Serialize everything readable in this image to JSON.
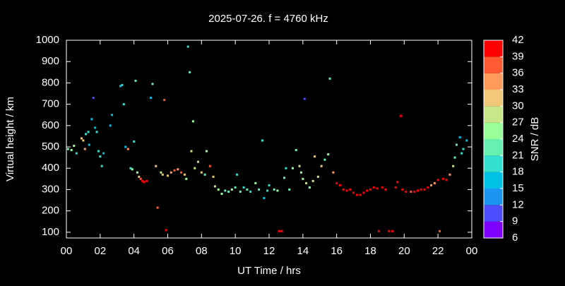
{
  "chart_data": {
    "type": "scatter",
    "title": "2025-07-26. f = 4760 kHz",
    "x_label": "UT Time / hrs",
    "y_label": "Virtual height / km",
    "xlim": [
      0,
      24
    ],
    "xticks": [
      {
        "value": 0,
        "label": "00"
      },
      {
        "value": 2,
        "label": "02"
      },
      {
        "value": 4,
        "label": "04"
      },
      {
        "value": 6,
        "label": "06"
      },
      {
        "value": 8,
        "label": "08"
      },
      10,
      12,
      14,
      16,
      18,
      20,
      22,
      {
        "value": 24,
        "label": "00"
      }
    ],
    "ylim": [
      73,
      1000
    ],
    "yticks": [
      100,
      200,
      300,
      400,
      500,
      600,
      700,
      800,
      900,
      1000
    ],
    "colorbar": {
      "label": "SNR / dB",
      "lim": [
        6,
        42
      ],
      "ticks": [
        6,
        9,
        12,
        15,
        18,
        21,
        24,
        27,
        30,
        33,
        36,
        39,
        42
      ],
      "colors": [
        "#8000ff",
        "#4d4dff",
        "#1a96f0",
        "#00c0e8",
        "#33e0d0",
        "#66f0b0",
        "#99ff99",
        "#c8e68a",
        "#f0c878",
        "#ff9a5c",
        "#ff5a33",
        "#ff0000"
      ]
    },
    "x": [
      0.1,
      0.3,
      0.45,
      0.6,
      0.9,
      1.0,
      1.1,
      1.15,
      1.3,
      1.35,
      1.5,
      1.6,
      1.7,
      1.8,
      1.9,
      2.0,
      2.1,
      2.2,
      2.6,
      2.7,
      3.2,
      3.3,
      3.4,
      3.5,
      3.65,
      3.8,
      3.9,
      4.0,
      4.1,
      4.2,
      4.3,
      4.4,
      4.5,
      4.6,
      4.75,
      5.0,
      5.1,
      5.3,
      5.4,
      5.6,
      5.7,
      5.8,
      5.9,
      6.0,
      6.2,
      6.4,
      6.6,
      6.8,
      7.0,
      7.1,
      7.2,
      7.3,
      7.4,
      7.5,
      7.6,
      7.8,
      8.0,
      8.2,
      8.3,
      8.5,
      8.7,
      8.8,
      9.0,
      9.2,
      9.4,
      9.6,
      9.8,
      10.0,
      10.1,
      10.3,
      10.5,
      10.7,
      10.9,
      11.2,
      11.4,
      11.6,
      11.7,
      11.9,
      12.0,
      12.3,
      12.5,
      12.6,
      12.75,
      12.9,
      13.0,
      13.2,
      13.4,
      13.6,
      13.8,
      13.9,
      14.0,
      14.1,
      14.2,
      14.4,
      14.6,
      14.7,
      14.9,
      15.1,
      15.3,
      15.5,
      15.6,
      15.8,
      16.0,
      16.2,
      16.4,
      16.6,
      16.8,
      17.0,
      17.2,
      17.4,
      17.6,
      17.8,
      18.0,
      18.2,
      18.4,
      18.5,
      18.7,
      18.9,
      19.1,
      19.3,
      19.5,
      19.6,
      19.8,
      19.9,
      20.1,
      20.4,
      20.6,
      20.8,
      21.0,
      21.2,
      21.4,
      21.6,
      21.8,
      22.0,
      22.1,
      22.3,
      22.5,
      22.7,
      22.9,
      23.0,
      23.1,
      23.3,
      23.4,
      23.5,
      23.7
    ],
    "values": [
      490,
      485,
      505,
      470,
      540,
      530,
      490,
      560,
      570,
      510,
      630,
      730,
      590,
      570,
      480,
      455,
      410,
      470,
      600,
      650,
      785,
      790,
      700,
      500,
      490,
      400,
      395,
      525,
      810,
      380,
      360,
      350,
      340,
      335,
      340,
      730,
      795,
      410,
      215,
      380,
      370,
      720,
      110,
      365,
      380,
      390,
      395,
      380,
      370,
      350,
      970,
      850,
      480,
      620,
      400,
      430,
      380,
      370,
      480,
      410,
      360,
      315,
      300,
      280,
      295,
      290,
      300,
      310,
      370,
      290,
      310,
      300,
      290,
      330,
      300,
      530,
      260,
      295,
      320,
      300,
      295,
      105,
      105,
      355,
      400,
      300,
      400,
      485,
      410,
      380,
      350,
      725,
      330,
      310,
      340,
      455,
      360,
      410,
      440,
      465,
      820,
      380,
      330,
      320,
      300,
      295,
      300,
      285,
      275,
      275,
      285,
      295,
      300,
      310,
      305,
      105,
      310,
      300,
      105,
      105,
      310,
      335,
      645,
      300,
      290,
      290,
      290,
      295,
      300,
      300,
      310,
      320,
      330,
      345,
      105,
      350,
      345,
      370,
      410,
      450,
      510,
      545,
      470,
      490,
      530
    ],
    "snr": [
      21,
      24,
      24,
      18,
      30,
      30,
      33,
      18,
      18,
      15,
      15,
      9,
      15,
      18,
      18,
      18,
      18,
      15,
      15,
      15,
      15,
      18,
      18,
      15,
      33,
      18,
      24,
      18,
      21,
      24,
      30,
      36,
      39,
      39,
      39,
      15,
      21,
      30,
      36,
      27,
      30,
      36,
      39,
      30,
      33,
      36,
      33,
      36,
      30,
      24,
      18,
      21,
      27,
      24,
      27,
      27,
      30,
      21,
      24,
      36,
      30,
      27,
      24,
      24,
      21,
      21,
      24,
      21,
      18,
      21,
      18,
      21,
      18,
      24,
      21,
      18,
      15,
      18,
      18,
      21,
      24,
      39,
      39,
      21,
      18,
      21,
      24,
      21,
      27,
      24,
      24,
      9,
      27,
      24,
      27,
      30,
      27,
      30,
      21,
      24,
      21,
      33,
      39,
      39,
      39,
      39,
      39,
      39,
      39,
      39,
      39,
      39,
      39,
      39,
      39,
      42,
      39,
      39,
      42,
      42,
      39,
      39,
      39,
      39,
      39,
      36,
      39,
      39,
      39,
      39,
      39,
      33,
      33,
      39,
      36,
      39,
      39,
      33,
      27,
      21,
      21,
      15,
      18,
      18,
      15
    ]
  }
}
